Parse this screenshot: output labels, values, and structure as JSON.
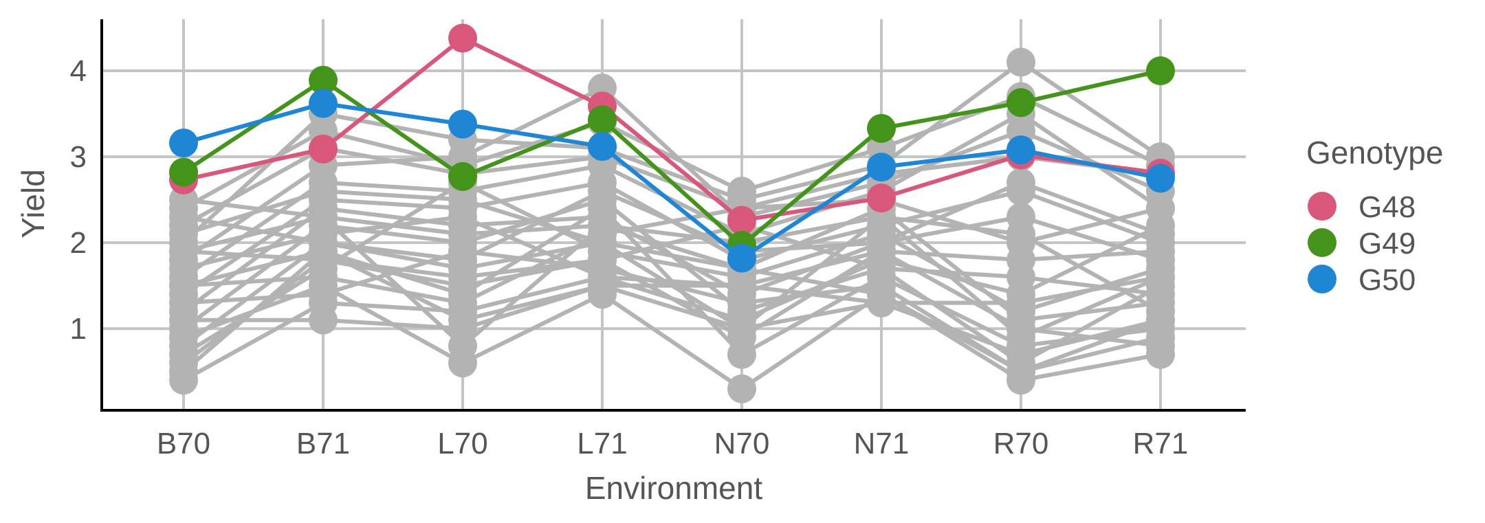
{
  "chart_data": {
    "type": "line",
    "xlabel": "Environment",
    "ylabel": "Yield",
    "categories": [
      "B70",
      "B71",
      "L70",
      "L71",
      "N70",
      "N71",
      "R70",
      "R71"
    ],
    "ylim": [
      0.05,
      4.6
    ],
    "yticks": [
      1,
      2,
      3,
      4
    ],
    "grid": true,
    "legend": {
      "title": "Genotype",
      "position": "right"
    },
    "background_series_color": "#b3b3b3",
    "background_series": [
      [
        2.5,
        2.3,
        2.1,
        2.2,
        2.0,
        2.3,
        0.9,
        1.6
      ],
      [
        2.3,
        2.0,
        1.8,
        2.6,
        1.9,
        2.0,
        2.7,
        2.1
      ],
      [
        2.1,
        2.6,
        2.5,
        2.0,
        1.7,
        2.4,
        1.1,
        1.3
      ],
      [
        1.9,
        1.8,
        1.6,
        1.8,
        2.2,
        1.7,
        0.6,
        1.5
      ],
      [
        1.7,
        2.1,
        2.3,
        1.6,
        1.5,
        1.9,
        1.8,
        1.9
      ],
      [
        1.5,
        1.6,
        1.3,
        2.1,
        2.4,
        2.5,
        2.0,
        2.4
      ],
      [
        1.3,
        1.4,
        1.9,
        1.7,
        1.3,
        1.5,
        0.5,
        0.9
      ],
      [
        1.1,
        1.1,
        1.0,
        1.5,
        1.0,
        1.3,
        0.7,
        1.1
      ],
      [
        0.9,
        1.5,
        0.6,
        1.4,
        0.3,
        1.4,
        0.4,
        0.7
      ],
      [
        0.7,
        1.7,
        2.7,
        1.9,
        1.6,
        2.1,
        1.2,
        1.7
      ],
      [
        0.5,
        1.9,
        1.4,
        2.4,
        0.7,
        1.6,
        0.8,
        1.0
      ],
      [
        0.4,
        1.3,
        1.2,
        1.6,
        1.1,
        1.8,
        1.4,
        2.2
      ],
      [
        2.4,
        3.3,
        2.9,
        3.4,
        2.6,
        3.1,
        3.7,
        2.9
      ],
      [
        2.0,
        3.5,
        3.2,
        3.1,
        2.5,
        2.9,
        4.1,
        3.0
      ],
      [
        1.8,
        2.9,
        3.0,
        3.8,
        2.3,
        2.7,
        3.3,
        2.6
      ],
      [
        1.6,
        2.7,
        2.6,
        2.9,
        2.1,
        2.6,
        3.5,
        2.4
      ],
      [
        1.4,
        2.5,
        2.4,
        2.7,
        1.8,
        2.2,
        2.6,
        2.0
      ],
      [
        1.2,
        2.4,
        2.2,
        2.3,
        1.4,
        2.0,
        2.3,
        1.8
      ],
      [
        1.0,
        2.2,
        2.0,
        2.5,
        1.2,
        1.7,
        1.6,
        1.4
      ],
      [
        0.8,
        2.0,
        1.7,
        2.0,
        1.0,
        2.3,
        2.1,
        1.2
      ],
      [
        0.6,
        1.8,
        1.5,
        1.8,
        0.9,
        1.9,
        1.0,
        0.8
      ],
      [
        2.2,
        3.1,
        2.8,
        3.0,
        2.4,
        2.8,
        3.0,
        2.8
      ],
      [
        1.9,
        2.3,
        0.8,
        2.2,
        1.7,
        1.4,
        0.5,
        1.1
      ],
      [
        1.5,
        1.9,
        1.1,
        1.5,
        1.5,
        1.3,
        1.3,
        1.6
      ]
    ],
    "series": [
      {
        "name": "G48",
        "color": "#d9577a",
        "values": [
          2.73,
          3.09,
          4.38,
          3.59,
          2.26,
          2.52,
          3.02,
          2.81
        ]
      },
      {
        "name": "G49",
        "color": "#44941c",
        "values": [
          2.82,
          3.89,
          2.77,
          3.43,
          1.97,
          3.33,
          3.63,
          4.0
        ]
      },
      {
        "name": "G50",
        "color": "#1f86d6",
        "values": [
          3.16,
          3.62,
          3.38,
          3.12,
          1.82,
          2.88,
          3.08,
          2.75
        ]
      }
    ]
  }
}
